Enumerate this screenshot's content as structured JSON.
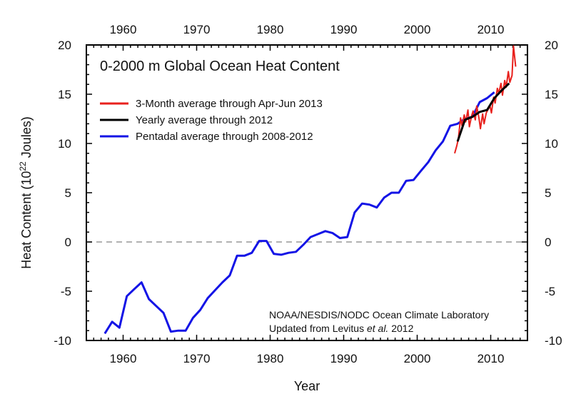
{
  "chart_data": {
    "type": "line",
    "title": "0-2000 m Global Ocean Heat Content",
    "xlabel": "Year",
    "ylabel_main": "Heat Content (10",
    "ylabel_sup": "22",
    "ylabel_tail": " Joules)",
    "xlim": [
      1955,
      2015
    ],
    "ylim": [
      -10,
      20
    ],
    "x_ticks": [
      1960,
      1970,
      1980,
      1990,
      2000,
      2010
    ],
    "y_ticks": [
      -10,
      -5,
      0,
      5,
      10,
      15,
      20
    ],
    "zero_line": true,
    "legend_position": "top-left",
    "series": [
      {
        "name": "3-Month average through Apr-Jun 2013",
        "color": "#e8211d",
        "x": [
          2005.1,
          2005.4,
          2005.6,
          2005.9,
          2006.1,
          2006.4,
          2006.6,
          2006.9,
          2007.1,
          2007.4,
          2007.6,
          2007.9,
          2008.1,
          2008.4,
          2008.6,
          2008.9,
          2009.1,
          2009.4,
          2009.6,
          2009.9,
          2010.1,
          2010.4,
          2010.6,
          2010.9,
          2011.1,
          2011.4,
          2011.6,
          2011.9,
          2012.1,
          2012.4,
          2012.6,
          2012.9,
          2013.1,
          2013.4
        ],
        "y": [
          9.0,
          9.8,
          10.5,
          12.6,
          11.8,
          12.9,
          12.2,
          13.4,
          11.7,
          12.8,
          13.3,
          12.4,
          13.8,
          12.6,
          11.5,
          13.0,
          12.0,
          13.1,
          13.4,
          13.8,
          13.1,
          14.7,
          14.1,
          15.6,
          15.1,
          16.1,
          14.9,
          16.4,
          15.7,
          17.3,
          16.2,
          16.9,
          19.9,
          17.8
        ]
      },
      {
        "name": "Yearly average through 2012",
        "color": "#000000",
        "x": [
          2005.5,
          2006.5,
          2007.5,
          2008.5,
          2009.5,
          2010.5,
          2011.5,
          2012.5
        ],
        "y": [
          10.2,
          12.4,
          12.7,
          13.2,
          13.4,
          14.6,
          15.4,
          16.1
        ]
      },
      {
        "name": "Pentadal average through 2008-2012",
        "color": "#1414e6",
        "x": [
          1957.5,
          1958.5,
          1959.5,
          1960.5,
          1961.5,
          1962.5,
          1963.5,
          1964.5,
          1965.5,
          1966.5,
          1967.5,
          1968.5,
          1969.5,
          1970.5,
          1971.5,
          1972.5,
          1973.5,
          1974.5,
          1975.5,
          1976.5,
          1977.5,
          1978.5,
          1979.5,
          1980.5,
          1981.5,
          1982.5,
          1983.5,
          1984.5,
          1985.5,
          1986.5,
          1987.5,
          1988.5,
          1989.5,
          1990.5,
          1991.5,
          1992.5,
          1993.5,
          1994.5,
          1995.5,
          1996.5,
          1997.5,
          1998.5,
          1999.5,
          2000.5,
          2001.5,
          2002.5,
          2003.5,
          2004.5,
          2005.5,
          2006.5,
          2007.5,
          2008.5,
          2009.5,
          2010.5
        ],
        "y": [
          -9.3,
          -8.1,
          -8.7,
          -5.5,
          -4.8,
          -4.1,
          -5.8,
          -6.5,
          -7.2,
          -9.1,
          -9.0,
          -9.0,
          -7.7,
          -6.9,
          -5.7,
          -4.9,
          -4.1,
          -3.4,
          -1.4,
          -1.4,
          -1.1,
          0.1,
          0.1,
          -1.2,
          -1.3,
          -1.1,
          -1.0,
          -0.3,
          0.5,
          0.8,
          1.1,
          0.9,
          0.4,
          0.5,
          3.0,
          3.9,
          3.8,
          3.5,
          4.5,
          5.0,
          5.0,
          6.2,
          6.3,
          7.2,
          8.1,
          9.3,
          10.2,
          11.8,
          12.0,
          12.5,
          12.7,
          14.2,
          14.6,
          15.2
        ]
      }
    ],
    "credit": {
      "line1": "NOAA/NESDIS/NODC Ocean Climate Laboratory",
      "line2_pre": "Updated from Levitus ",
      "line2_italic": "et al.",
      "line2_post": " 2012"
    }
  }
}
